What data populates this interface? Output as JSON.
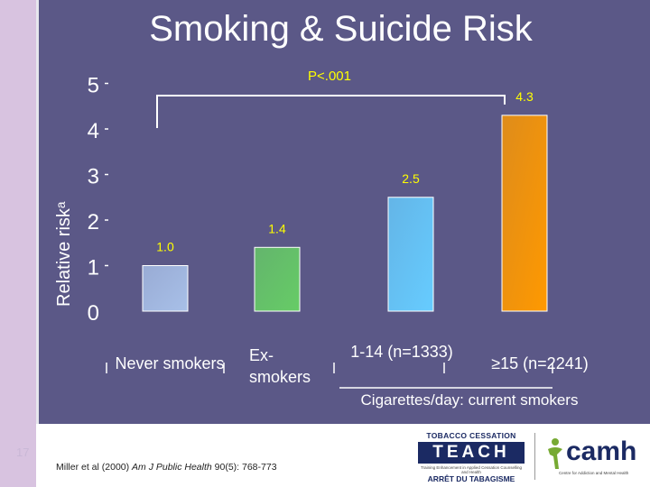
{
  "title": "Smoking & Suicide Risk",
  "p_value": "P<.001",
  "slide_number": "17",
  "citation": {
    "before": "Miller et al (2000) ",
    "journal": "Am J Public Health",
    "after": " 90(5): 768-773"
  },
  "group_label": "Cigarettes/day: current smokers",
  "logos": {
    "teach_top": "TOBACCO CESSATION",
    "teach_main": "TEACH",
    "teach_sub": "Training Enhancement in Applied Cessation Counselling and Health",
    "teach_bottom": "ARRÊT DU TABAGISME",
    "camh_word": "camh",
    "camh_tag": "Centre for Addiction and Mental Health"
  },
  "chart_data": {
    "type": "bar",
    "categories": [
      "Never smokers",
      "Ex-smokers",
      "1-14 (n=1333)",
      "≥15 (n=2241)"
    ],
    "values": [
      1.0,
      1.4,
      2.5,
      4.3
    ],
    "value_labels": [
      "1.0",
      "1.4",
      "2.5",
      "4.3"
    ],
    "ylabel": "Relative riskᵃ",
    "yticks": [
      "0",
      "1",
      "2",
      "3",
      "4",
      "5"
    ],
    "ylim": [
      0,
      5
    ],
    "grid": false,
    "colors": [
      "#a8c0e8",
      "#66cc66",
      "#66ccff",
      "#ff9900"
    ],
    "bracket_label": "P<.001"
  }
}
